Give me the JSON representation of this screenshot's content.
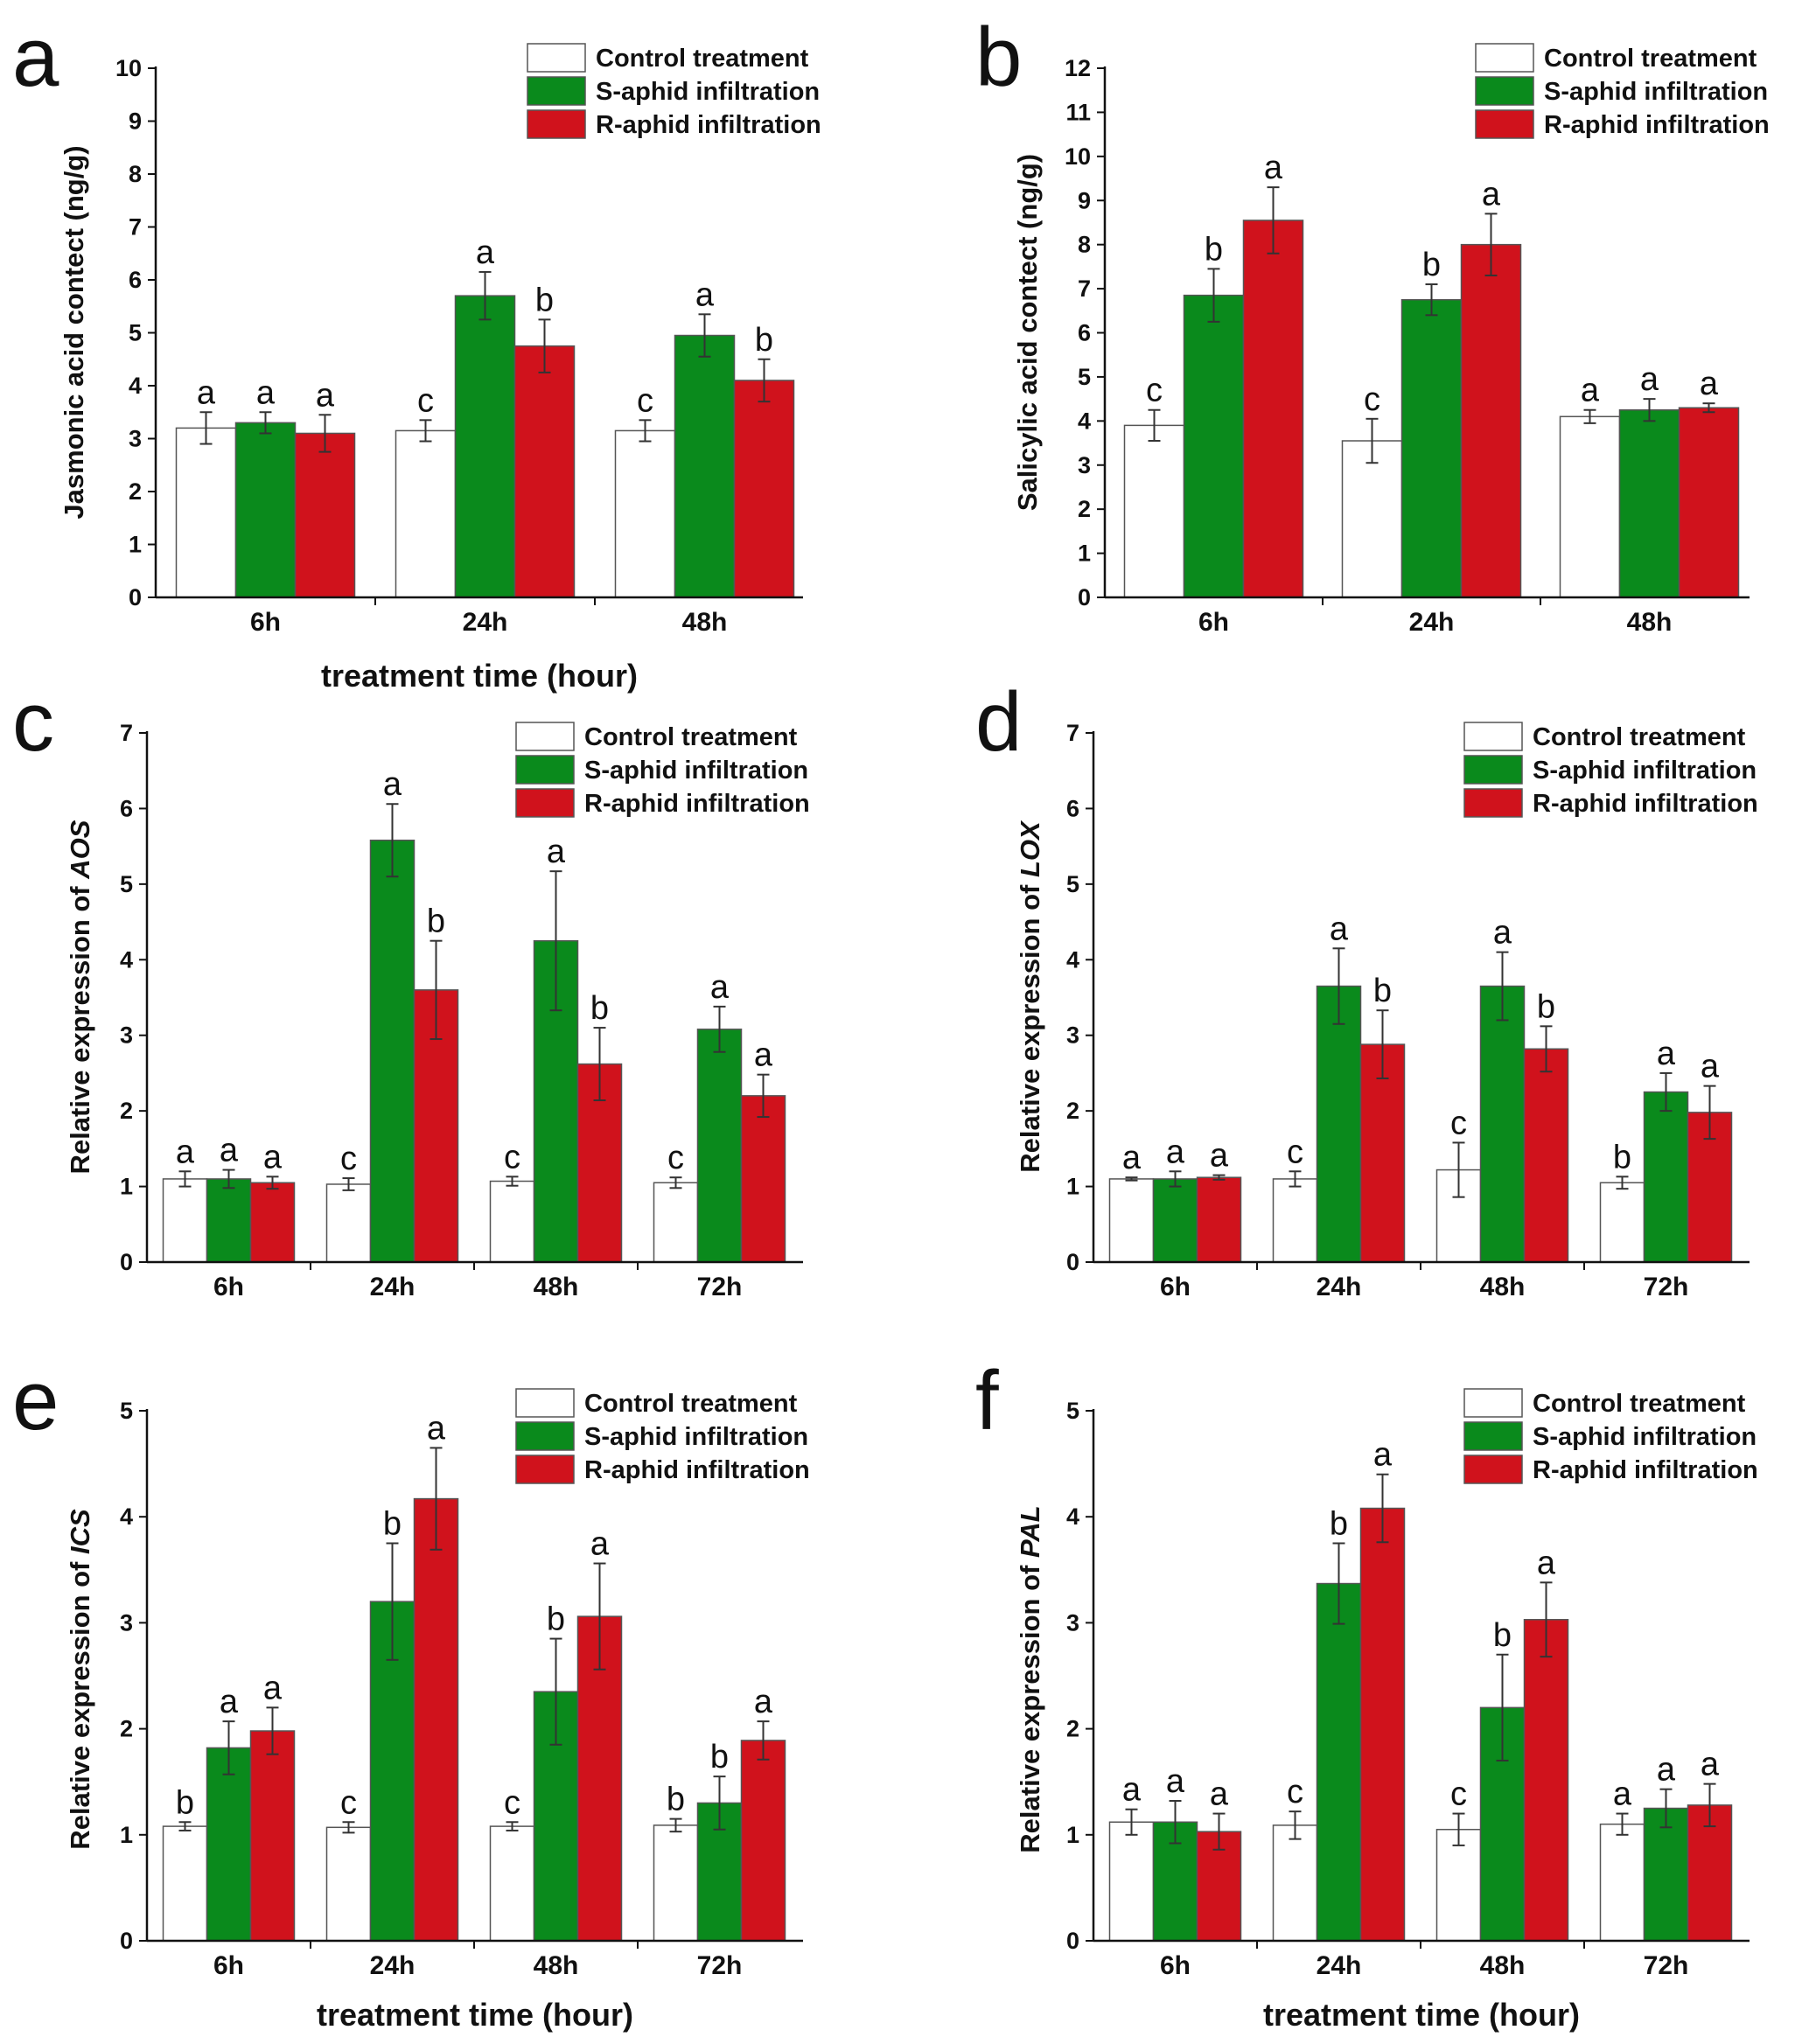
{
  "colors": {
    "control": "#ffffff",
    "s_aphid": "#0a8a1c",
    "r_aphid": "#d0121c",
    "ink": "#111111"
  },
  "legend": [
    "Control treatment",
    "S-aphid infiltration",
    "R-aphid infiltration"
  ],
  "chart_data": [
    {
      "panel": "a",
      "type": "bar",
      "categories": [
        "6h",
        "24h",
        "48h"
      ],
      "ylim": [
        0,
        10
      ],
      "yticks": [
        0,
        1,
        2,
        3,
        4,
        5,
        6,
        7,
        8,
        9,
        10
      ],
      "ylabel_parts": [
        "Jasmonic acid contect (ng/g)"
      ],
      "xlabel": "treatment time (hour)",
      "series": [
        {
          "name": "Control treatment",
          "values": [
            3.2,
            3.15,
            3.15
          ],
          "errors": [
            0.3,
            0.2,
            0.2
          ],
          "letters": [
            "a",
            "c",
            "c"
          ]
        },
        {
          "name": "S-aphid infiltration",
          "values": [
            3.3,
            5.7,
            4.95
          ],
          "errors": [
            0.2,
            0.45,
            0.4
          ],
          "letters": [
            "a",
            "a",
            "a"
          ]
        },
        {
          "name": "R-aphid infiltration",
          "values": [
            3.1,
            4.75,
            4.1
          ],
          "errors": [
            0.35,
            0.5,
            0.4
          ],
          "letters": [
            "a",
            "b",
            "b"
          ]
        }
      ]
    },
    {
      "panel": "b",
      "type": "bar",
      "categories": [
        "6h",
        "24h",
        "48h"
      ],
      "ylim": [
        0,
        12
      ],
      "yticks": [
        0,
        1,
        2,
        3,
        4,
        5,
        6,
        7,
        8,
        9,
        10,
        11,
        12
      ],
      "ylabel_parts": [
        "Salicylic acid contect (ng/g)"
      ],
      "xlabel": "",
      "series": [
        {
          "name": "Control treatment",
          "values": [
            3.9,
            3.55,
            4.1
          ],
          "errors": [
            0.35,
            0.5,
            0.15
          ],
          "letters": [
            "c",
            "c",
            "a"
          ]
        },
        {
          "name": "S-aphid infiltration",
          "values": [
            6.85,
            6.75,
            4.25
          ],
          "errors": [
            0.6,
            0.35,
            0.25
          ],
          "letters": [
            "b",
            "b",
            "a"
          ]
        },
        {
          "name": "R-aphid infiltration",
          "values": [
            8.55,
            8.0,
            4.3
          ],
          "errors": [
            0.75,
            0.7,
            0.1
          ],
          "letters": [
            "a",
            "a",
            "a"
          ]
        }
      ]
    },
    {
      "panel": "c",
      "type": "bar",
      "categories": [
        "6h",
        "24h",
        "48h",
        "72h"
      ],
      "ylim": [
        0,
        7
      ],
      "yticks": [
        0,
        1,
        2,
        3,
        4,
        5,
        6,
        7
      ],
      "ylabel_parts": [
        "Relative expression of ",
        "AOS"
      ],
      "xlabel": "",
      "series": [
        {
          "name": "Control treatment",
          "values": [
            1.1,
            1.03,
            1.07,
            1.05
          ],
          "errors": [
            0.1,
            0.08,
            0.06,
            0.07
          ],
          "letters": [
            "a",
            "c",
            "c",
            "c"
          ]
        },
        {
          "name": "S-aphid infiltration",
          "values": [
            1.1,
            5.58,
            4.25,
            3.08
          ],
          "errors": [
            0.12,
            0.48,
            0.92,
            0.3
          ],
          "letters": [
            "a",
            "a",
            "a",
            "a"
          ]
        },
        {
          "name": "R-aphid infiltration",
          "values": [
            1.05,
            3.6,
            2.62,
            2.2
          ],
          "errors": [
            0.08,
            0.65,
            0.48,
            0.28
          ],
          "letters": [
            "a",
            "b",
            "b",
            "a"
          ]
        }
      ]
    },
    {
      "panel": "d",
      "type": "bar",
      "categories": [
        "6h",
        "24h",
        "48h",
        "72h"
      ],
      "ylim": [
        0,
        7
      ],
      "yticks": [
        0,
        1,
        2,
        3,
        4,
        5,
        6,
        7
      ],
      "ylabel_parts": [
        "Relative expression of ",
        "LOX"
      ],
      "xlabel": "",
      "series": [
        {
          "name": "Control treatment",
          "values": [
            1.1,
            1.1,
            1.22,
            1.05
          ],
          "errors": [
            0.02,
            0.1,
            0.36,
            0.08
          ],
          "letters": [
            "a",
            "c",
            "c",
            "b"
          ]
        },
        {
          "name": "S-aphid infiltration",
          "values": [
            1.1,
            3.65,
            3.65,
            2.25
          ],
          "errors": [
            0.1,
            0.5,
            0.45,
            0.25
          ],
          "letters": [
            "a",
            "a",
            "a",
            "a"
          ]
        },
        {
          "name": "R-aphid infiltration",
          "values": [
            1.12,
            2.88,
            2.82,
            1.98
          ],
          "errors": [
            0.03,
            0.45,
            0.3,
            0.35
          ],
          "letters": [
            "a",
            "b",
            "b",
            "a"
          ]
        }
      ]
    },
    {
      "panel": "e",
      "type": "bar",
      "categories": [
        "6h",
        "24h",
        "48h",
        "72h"
      ],
      "ylim": [
        0,
        5
      ],
      "yticks": [
        0,
        1,
        2,
        3,
        4,
        5
      ],
      "ylabel_parts": [
        "Relative expression of ",
        "ICS"
      ],
      "xlabel": "treatment time (hour)",
      "series": [
        {
          "name": "Control treatment",
          "values": [
            1.08,
            1.07,
            1.08,
            1.09
          ],
          "errors": [
            0.04,
            0.05,
            0.04,
            0.06
          ],
          "letters": [
            "b",
            "c",
            "c",
            "b"
          ]
        },
        {
          "name": "S-aphid infiltration",
          "values": [
            1.82,
            3.2,
            2.35,
            1.3
          ],
          "errors": [
            0.25,
            0.55,
            0.5,
            0.25
          ],
          "letters": [
            "a",
            "b",
            "b",
            "b"
          ]
        },
        {
          "name": "R-aphid infiltration",
          "values": [
            1.98,
            4.17,
            3.06,
            1.89
          ],
          "errors": [
            0.22,
            0.48,
            0.5,
            0.18
          ],
          "letters": [
            "a",
            "a",
            "a",
            "a"
          ]
        }
      ]
    },
    {
      "panel": "f",
      "type": "bar",
      "categories": [
        "6h",
        "24h",
        "48h",
        "72h"
      ],
      "ylim": [
        0,
        5
      ],
      "yticks": [
        0,
        1,
        2,
        3,
        4,
        5
      ],
      "ylabel_parts": [
        "Relative expression of ",
        "PAL"
      ],
      "xlabel": "treatment time (hour)",
      "series": [
        {
          "name": "Control treatment",
          "values": [
            1.12,
            1.09,
            1.05,
            1.1
          ],
          "errors": [
            0.12,
            0.13,
            0.15,
            0.1
          ],
          "letters": [
            "a",
            "c",
            "c",
            "a"
          ]
        },
        {
          "name": "S-aphid infiltration",
          "values": [
            1.12,
            3.37,
            2.2,
            1.25
          ],
          "errors": [
            0.2,
            0.38,
            0.5,
            0.18
          ],
          "letters": [
            "a",
            "b",
            "b",
            "a"
          ]
        },
        {
          "name": "R-aphid infiltration",
          "values": [
            1.03,
            4.08,
            3.03,
            1.28
          ],
          "errors": [
            0.17,
            0.32,
            0.35,
            0.2
          ],
          "letters": [
            "a",
            "a",
            "a",
            "a"
          ]
        }
      ]
    }
  ]
}
